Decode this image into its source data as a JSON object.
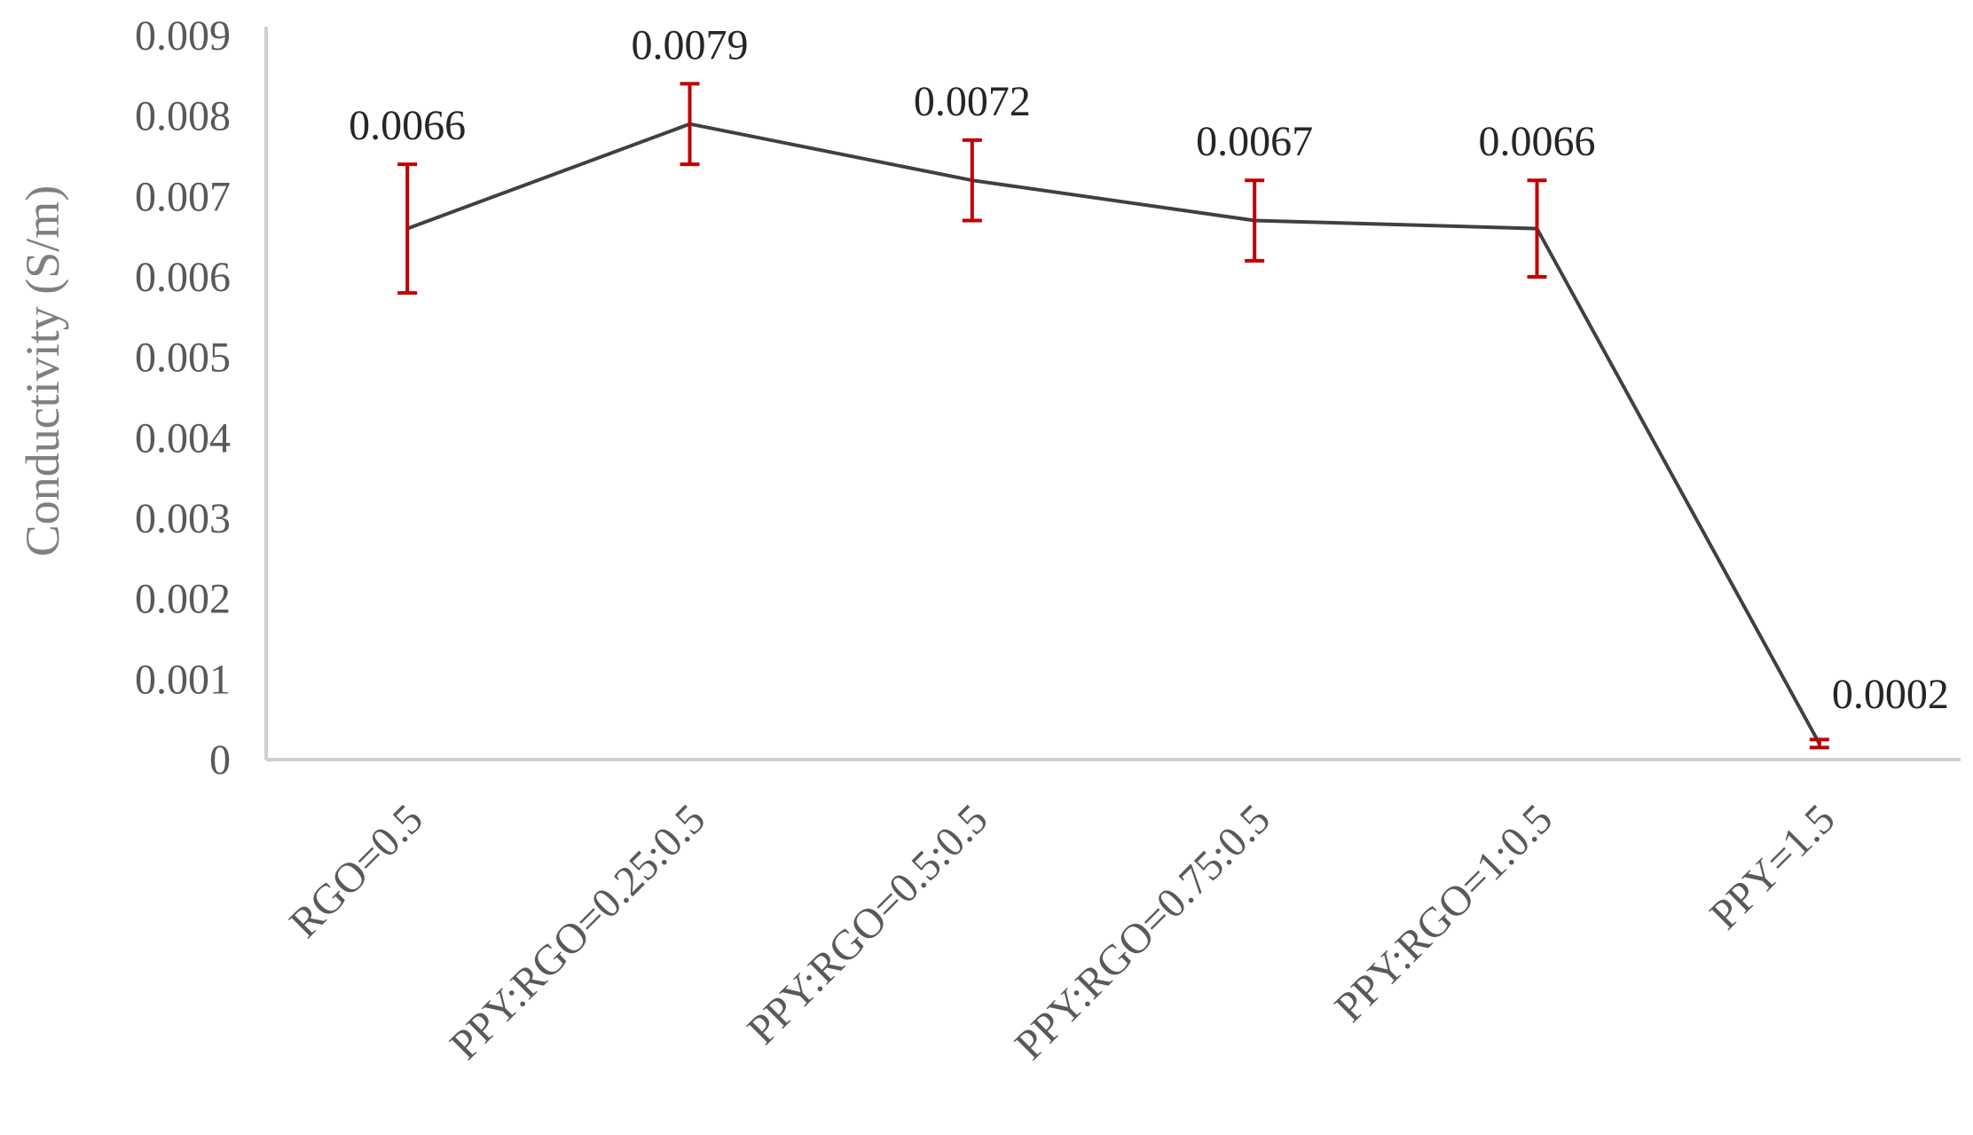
{
  "chart_data": {
    "type": "line",
    "categories": [
      "RGO=0.5",
      "PPY:RGO=0.25:0.5",
      "PPY:RGO=0.5:0.5",
      "PPY:RGO=0.75:0.5",
      "PPY:RGO=1:0.5",
      "PPY=1.5"
    ],
    "series": [
      {
        "values": [
          0.0066,
          0.0079,
          0.0072,
          0.0067,
          0.0066,
          0.0002
        ],
        "error_low": [
          0.0058,
          0.0074,
          0.0067,
          0.0062,
          0.006,
          0.00015
        ],
        "error_high": [
          0.0074,
          0.0084,
          0.0077,
          0.0072,
          0.0072,
          0.00025
        ]
      }
    ],
    "data_labels": [
      "0.0066",
      "0.0079",
      "0.0072",
      "0.0067",
      "0.0066",
      "0.0002"
    ],
    "y_ticks": [
      "0",
      "0.001",
      "0.002",
      "0.003",
      "0.004",
      "0.005",
      "0.006",
      "0.007",
      "0.008",
      "0.009"
    ],
    "ylim": [
      0,
      0.009
    ],
    "xlabel": "",
    "ylabel": "Conductivity (S/m)",
    "title": "",
    "grid": false,
    "legend": "none",
    "colors": {
      "line": "#404040",
      "error_bar": "#c00000",
      "axis": "#d0d0d0"
    }
  }
}
